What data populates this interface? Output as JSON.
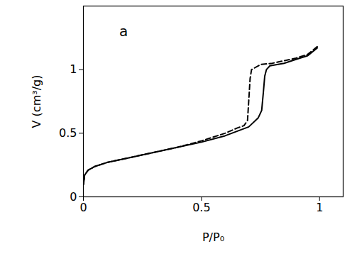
{
  "chart_data": {
    "type": "line",
    "xlabel": "P/P₀",
    "ylabel": "V (cm³/g)",
    "xlim": [
      0,
      1.1
    ],
    "ylim": [
      0,
      1.5
    ],
    "xticks": [
      0,
      0.5,
      1
    ],
    "yticks": [
      0,
      0.5,
      1
    ],
    "grid": false,
    "annotations": [
      {
        "text": "a",
        "x": 0.17,
        "y": 1.3
      }
    ],
    "series": [
      {
        "color": "#000000",
        "line_style": "solid",
        "x": [
          0.001,
          0.005,
          0.02,
          0.05,
          0.1,
          0.2,
          0.3,
          0.4,
          0.5,
          0.6,
          0.7,
          0.74,
          0.755,
          0.762,
          0.768,
          0.775,
          0.79,
          0.85,
          0.9,
          0.95,
          0.99
        ],
        "values": [
          0.1,
          0.17,
          0.21,
          0.24,
          0.27,
          0.31,
          0.35,
          0.39,
          0.43,
          0.48,
          0.55,
          0.62,
          0.68,
          0.82,
          0.95,
          1.0,
          1.03,
          1.05,
          1.08,
          1.11,
          1.17
        ]
      },
      {
        "color": "#000000",
        "line_style": "dashed",
        "x": [
          0.99,
          0.95,
          0.9,
          0.8,
          0.75,
          0.712,
          0.706,
          0.7,
          0.695,
          0.68,
          0.65,
          0.6,
          0.5,
          0.4,
          0.3,
          0.2,
          0.1,
          0.05,
          0.02,
          0.005,
          0.001
        ],
        "values": [
          1.18,
          1.12,
          1.09,
          1.05,
          1.04,
          1.0,
          0.93,
          0.75,
          0.6,
          0.56,
          0.54,
          0.5,
          0.44,
          0.39,
          0.35,
          0.31,
          0.27,
          0.24,
          0.21,
          0.17,
          0.1
        ]
      }
    ]
  }
}
